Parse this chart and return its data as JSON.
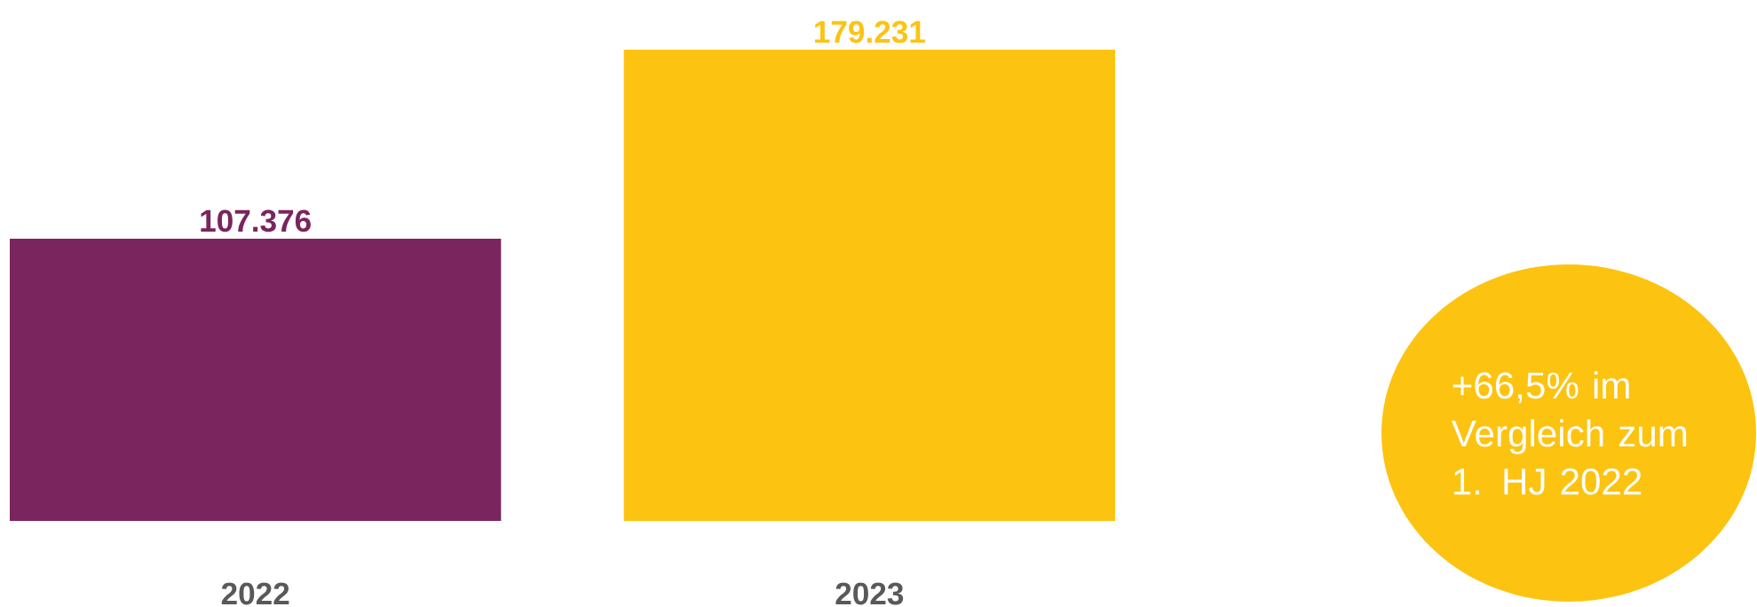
{
  "chart_data": {
    "type": "bar",
    "categories": [
      "2022",
      "2023"
    ],
    "values": [
      107376,
      179231
    ],
    "colors": [
      "#7a255d",
      "#fdc311"
    ],
    "value_labels": [
      "107.376",
      "179.231"
    ],
    "annotations": [
      "+66,5% im Vergleich zum 1. HJ 2022"
    ]
  }
}
